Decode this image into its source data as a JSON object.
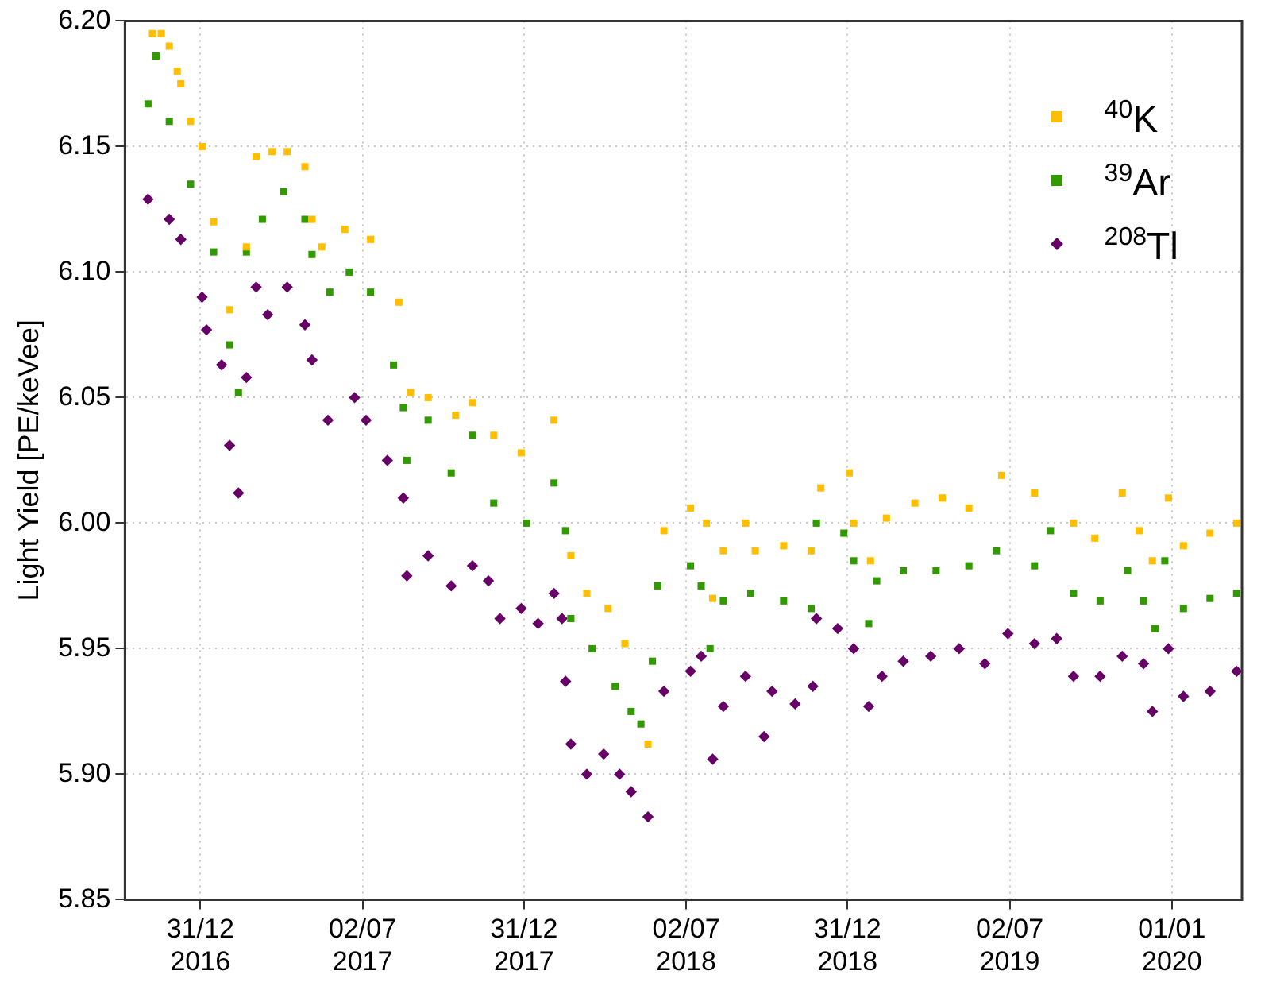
{
  "chart_data": {
    "type": "scatter",
    "ylabel": "Light Yield [PE/keVee]",
    "xlim": [
      "2016-10-07",
      "2020-03-20"
    ],
    "xticks": [
      {
        "value": "2016-12-31",
        "label": "31/12 2016"
      },
      {
        "value": "2017-07-02",
        "label": "02/07 2017"
      },
      {
        "value": "2017-12-31",
        "label": "31/12 2017"
      },
      {
        "value": "2018-07-02",
        "label": "02/07 2018"
      },
      {
        "value": "2018-12-31",
        "label": "31/12 2018"
      },
      {
        "value": "2019-07-02",
        "label": "02/07 2019"
      },
      {
        "value": "2020-01-01",
        "label": "01/01 2020"
      }
    ],
    "ylim": [
      5.85,
      6.2
    ],
    "yticks": [
      5.85,
      {
        "value": 5.9,
        "label": "5.90"
      },
      5.95,
      {
        "value": 6.0,
        "label": "6.00"
      },
      6.05,
      {
        "value": 6.1,
        "label": "6.10"
      },
      6.15,
      {
        "value": 6.2,
        "label": "6.20"
      }
    ],
    "grid": true,
    "legend": "top right",
    "series": [
      {
        "name": "$^{40}$K",
        "color": "#ffbf00",
        "marker": "square",
        "x": [
          "2016-11-07",
          "2016-11-17",
          "2016-11-26",
          "2016-12-05",
          "2016-12-09",
          "2016-12-20",
          "2017-01-02",
          "2017-01-15",
          "2017-02-02",
          "2017-02-21",
          "2017-03-04",
          "2017-03-22",
          "2017-04-08",
          "2017-04-28",
          "2017-05-06",
          "2017-05-17",
          "2017-06-12",
          "2017-07-11",
          "2017-08-12",
          "2017-08-25",
          "2017-09-14",
          "2017-10-15",
          "2017-11-03",
          "2017-11-27",
          "2017-12-28",
          "2018-02-03",
          "2018-02-22",
          "2018-03-12",
          "2018-04-05",
          "2018-04-24",
          "2018-05-20",
          "2018-06-07",
          "2018-07-07",
          "2018-07-25",
          "2018-08-01",
          "2018-08-13",
          "2018-09-07",
          "2018-09-18",
          "2018-10-20",
          "2018-11-20",
          "2018-12-01",
          "2019-01-02",
          "2019-01-07",
          "2019-01-26",
          "2019-02-13",
          "2019-03-17",
          "2019-04-17",
          "2019-05-17",
          "2019-06-23",
          "2019-07-30",
          "2019-09-12",
          "2019-10-06",
          "2019-11-06",
          "2019-11-25",
          "2019-12-10",
          "2019-12-28",
          "2020-01-14",
          "2020-02-13",
          "2020-03-14"
        ],
        "values": [
          6.195,
          6.195,
          6.19,
          6.18,
          6.175,
          6.16,
          6.15,
          6.12,
          6.085,
          6.11,
          6.146,
          6.148,
          6.148,
          6.142,
          6.121,
          6.11,
          6.117,
          6.113,
          6.088,
          6.052,
          6.05,
          6.043,
          6.048,
          6.035,
          6.028,
          6.041,
          5.987,
          5.972,
          5.966,
          5.952,
          5.912,
          5.997,
          6.006,
          6.0,
          5.97,
          5.989,
          6.0,
          5.989,
          5.991,
          5.989,
          6.014,
          6.02,
          6.0,
          5.985,
          6.002,
          6.008,
          6.01,
          6.006,
          6.019,
          6.012,
          6.0,
          5.994,
          6.012,
          5.997,
          5.985,
          6.01,
          5.991,
          5.996,
          6.0
        ]
      },
      {
        "name": "$^{39}$Ar",
        "color": "#339900",
        "marker": "square",
        "x": [
          "2016-11-02",
          "2016-11-11",
          "2016-11-26",
          "2016-12-20",
          "2017-01-15",
          "2017-02-02",
          "2017-02-12",
          "2017-02-21",
          "2017-03-11",
          "2017-04-04",
          "2017-04-28",
          "2017-05-06",
          "2017-05-26",
          "2017-06-17",
          "2017-07-11",
          "2017-08-06",
          "2017-08-17",
          "2017-08-21",
          "2017-09-14",
          "2017-10-10",
          "2017-11-03",
          "2017-11-27",
          "2018-01-03",
          "2018-02-03",
          "2018-02-16",
          "2018-02-22",
          "2018-03-18",
          "2018-04-13",
          "2018-05-01",
          "2018-05-12",
          "2018-05-25",
          "2018-05-31",
          "2018-07-07",
          "2018-07-19",
          "2018-07-29",
          "2018-08-13",
          "2018-09-13",
          "2018-10-20",
          "2018-11-20",
          "2018-11-26",
          "2018-12-27",
          "2019-01-07",
          "2019-01-24",
          "2019-02-02",
          "2019-03-04",
          "2019-04-10",
          "2019-05-17",
          "2019-06-17",
          "2019-07-30",
          "2019-08-17",
          "2019-09-12",
          "2019-10-12",
          "2019-11-12",
          "2019-11-30",
          "2019-12-13",
          "2019-12-24",
          "2020-01-14",
          "2020-02-13",
          "2020-03-14"
        ],
        "values": [
          6.167,
          6.186,
          6.16,
          6.135,
          6.108,
          6.071,
          6.052,
          6.108,
          6.121,
          6.132,
          6.121,
          6.107,
          6.092,
          6.1,
          6.092,
          6.063,
          6.046,
          6.025,
          6.041,
          6.02,
          6.035,
          6.008,
          6.0,
          6.016,
          5.997,
          5.962,
          5.95,
          5.935,
          5.925,
          5.92,
          5.945,
          5.975,
          5.983,
          5.975,
          5.95,
          5.969,
          5.972,
          5.969,
          5.966,
          6.0,
          5.996,
          5.985,
          5.96,
          5.977,
          5.981,
          5.981,
          5.983,
          5.989,
          5.983,
          5.997,
          5.972,
          5.969,
          5.981,
          5.969,
          5.958,
          5.985,
          5.966,
          5.97,
          5.972
        ]
      },
      {
        "name": "$^{208}$Tl",
        "color": "#660066",
        "marker": "diamond",
        "x": [
          "2016-11-02",
          "2016-11-26",
          "2016-12-09",
          "2017-01-02",
          "2017-01-07",
          "2017-01-24",
          "2017-02-02",
          "2017-02-12",
          "2017-02-21",
          "2017-03-04",
          "2017-03-17",
          "2017-04-08",
          "2017-04-28",
          "2017-05-06",
          "2017-05-24",
          "2017-06-23",
          "2017-07-06",
          "2017-07-30",
          "2017-08-17",
          "2017-08-21",
          "2017-09-14",
          "2017-10-10",
          "2017-11-03",
          "2017-11-21",
          "2017-12-04",
          "2017-12-28",
          "2018-01-16",
          "2018-02-03",
          "2018-02-12",
          "2018-02-16",
          "2018-02-22",
          "2018-03-12",
          "2018-03-31",
          "2018-04-18",
          "2018-05-01",
          "2018-05-20",
          "2018-06-07",
          "2018-07-07",
          "2018-07-19",
          "2018-08-01",
          "2018-08-13",
          "2018-09-07",
          "2018-09-28",
          "2018-10-07",
          "2018-11-02",
          "2018-11-22",
          "2018-11-26",
          "2018-12-20",
          "2019-01-07",
          "2019-01-24",
          "2019-02-08",
          "2019-03-04",
          "2019-04-04",
          "2019-05-06",
          "2019-06-04",
          "2019-06-30",
          "2019-07-30",
          "2019-08-24",
          "2019-09-12",
          "2019-10-12",
          "2019-11-06",
          "2019-11-30",
          "2019-12-10",
          "2019-12-28",
          "2020-01-14",
          "2020-02-13",
          "2020-03-14"
        ],
        "values": [
          6.129,
          6.121,
          6.113,
          6.09,
          6.077,
          6.063,
          6.031,
          6.012,
          6.058,
          6.094,
          6.083,
          6.094,
          6.079,
          6.065,
          6.041,
          6.05,
          6.041,
          6.025,
          6.01,
          5.979,
          5.987,
          5.975,
          5.983,
          5.977,
          5.962,
          5.966,
          5.96,
          5.972,
          5.962,
          5.937,
          5.912,
          5.9,
          5.908,
          5.9,
          5.893,
          5.883,
          5.933,
          5.941,
          5.947,
          5.906,
          5.927,
          5.939,
          5.915,
          5.933,
          5.928,
          5.935,
          5.962,
          5.958,
          5.95,
          5.927,
          5.939,
          5.945,
          5.947,
          5.95,
          5.944,
          5.956,
          5.952,
          5.954,
          5.939,
          5.939,
          5.947,
          5.944,
          5.925,
          5.95,
          5.931,
          5.933,
          5.941
        ]
      }
    ]
  }
}
